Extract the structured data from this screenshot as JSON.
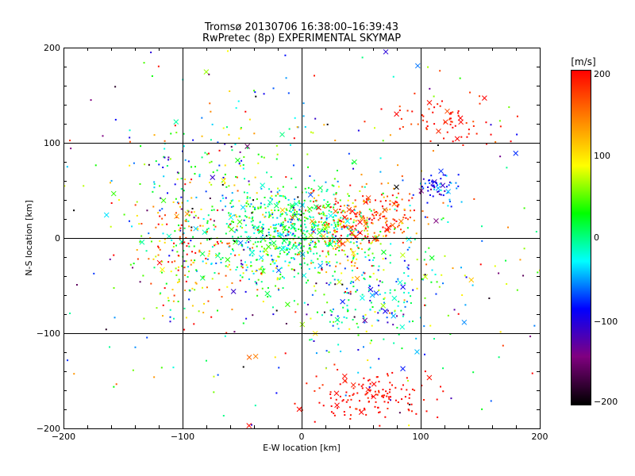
{
  "chart_data": {
    "type": "scatter",
    "title": "Tromsø 20130706 16:38:00–16:39:43",
    "subtitle": "RwPretec (8p) EXPERIMENTAL SKYMAP",
    "xlabel": "E-W location [km]",
    "ylabel": "N-S location [km]",
    "xlim": [
      -200,
      200
    ],
    "ylim": [
      -200,
      200
    ],
    "xticks": [
      "−200",
      "−100",
      "0",
      "100",
      "200"
    ],
    "yticks": [
      "−200",
      "−100",
      "0",
      "100",
      "200"
    ],
    "grid": true,
    "colorbar": {
      "unit": "[m/s]",
      "range": [
        -200,
        200
      ],
      "ticks": [
        "200",
        "100",
        "0",
        "−100",
        "−200"
      ],
      "colors": [
        "#000000",
        "#800080",
        "#0000ff",
        "#00ffff",
        "#00ff00",
        "#ffff00",
        "#ff8000",
        "#ff0000"
      ]
    },
    "clusters": [
      {
        "cx": -25,
        "cy": 0,
        "sx": 28,
        "sy": 28,
        "n": 380,
        "v": 10,
        "vs": 45
      },
      {
        "cx": 5,
        "cy": 15,
        "sx": 25,
        "sy": 18,
        "n": 250,
        "v": 5,
        "vs": 35
      },
      {
        "cx": -80,
        "cy": 50,
        "sx": 35,
        "sy": 50,
        "n": 200,
        "v": 0,
        "vs": 90
      },
      {
        "cx": -95,
        "cy": -20,
        "sx": 22,
        "sy": 30,
        "n": 150,
        "v": 130,
        "vs": 70
      },
      {
        "cx": 55,
        "cy": 25,
        "sx": 22,
        "sy": 15,
        "n": 200,
        "v": 175,
        "vs": 35
      },
      {
        "cx": 40,
        "cy": -5,
        "sx": 18,
        "sy": 18,
        "n": 100,
        "v": 100,
        "vs": 60
      },
      {
        "cx": 65,
        "cy": -60,
        "sx": 35,
        "sy": 30,
        "n": 200,
        "v": -20,
        "vs": 60
      },
      {
        "cx": 115,
        "cy": 125,
        "sx": 22,
        "sy": 12,
        "n": 70,
        "v": 190,
        "vs": 15
      },
      {
        "cx": 115,
        "cy": 55,
        "sx": 8,
        "sy": 10,
        "n": 60,
        "v": -90,
        "vs": 35
      },
      {
        "cx": 55,
        "cy": -165,
        "sx": 25,
        "sy": 13,
        "n": 140,
        "v": 195,
        "vs": 10
      },
      {
        "cx": 0,
        "cy": 0,
        "sx": 120,
        "sy": 110,
        "n": 450,
        "v": 0,
        "vs": 120
      }
    ]
  }
}
